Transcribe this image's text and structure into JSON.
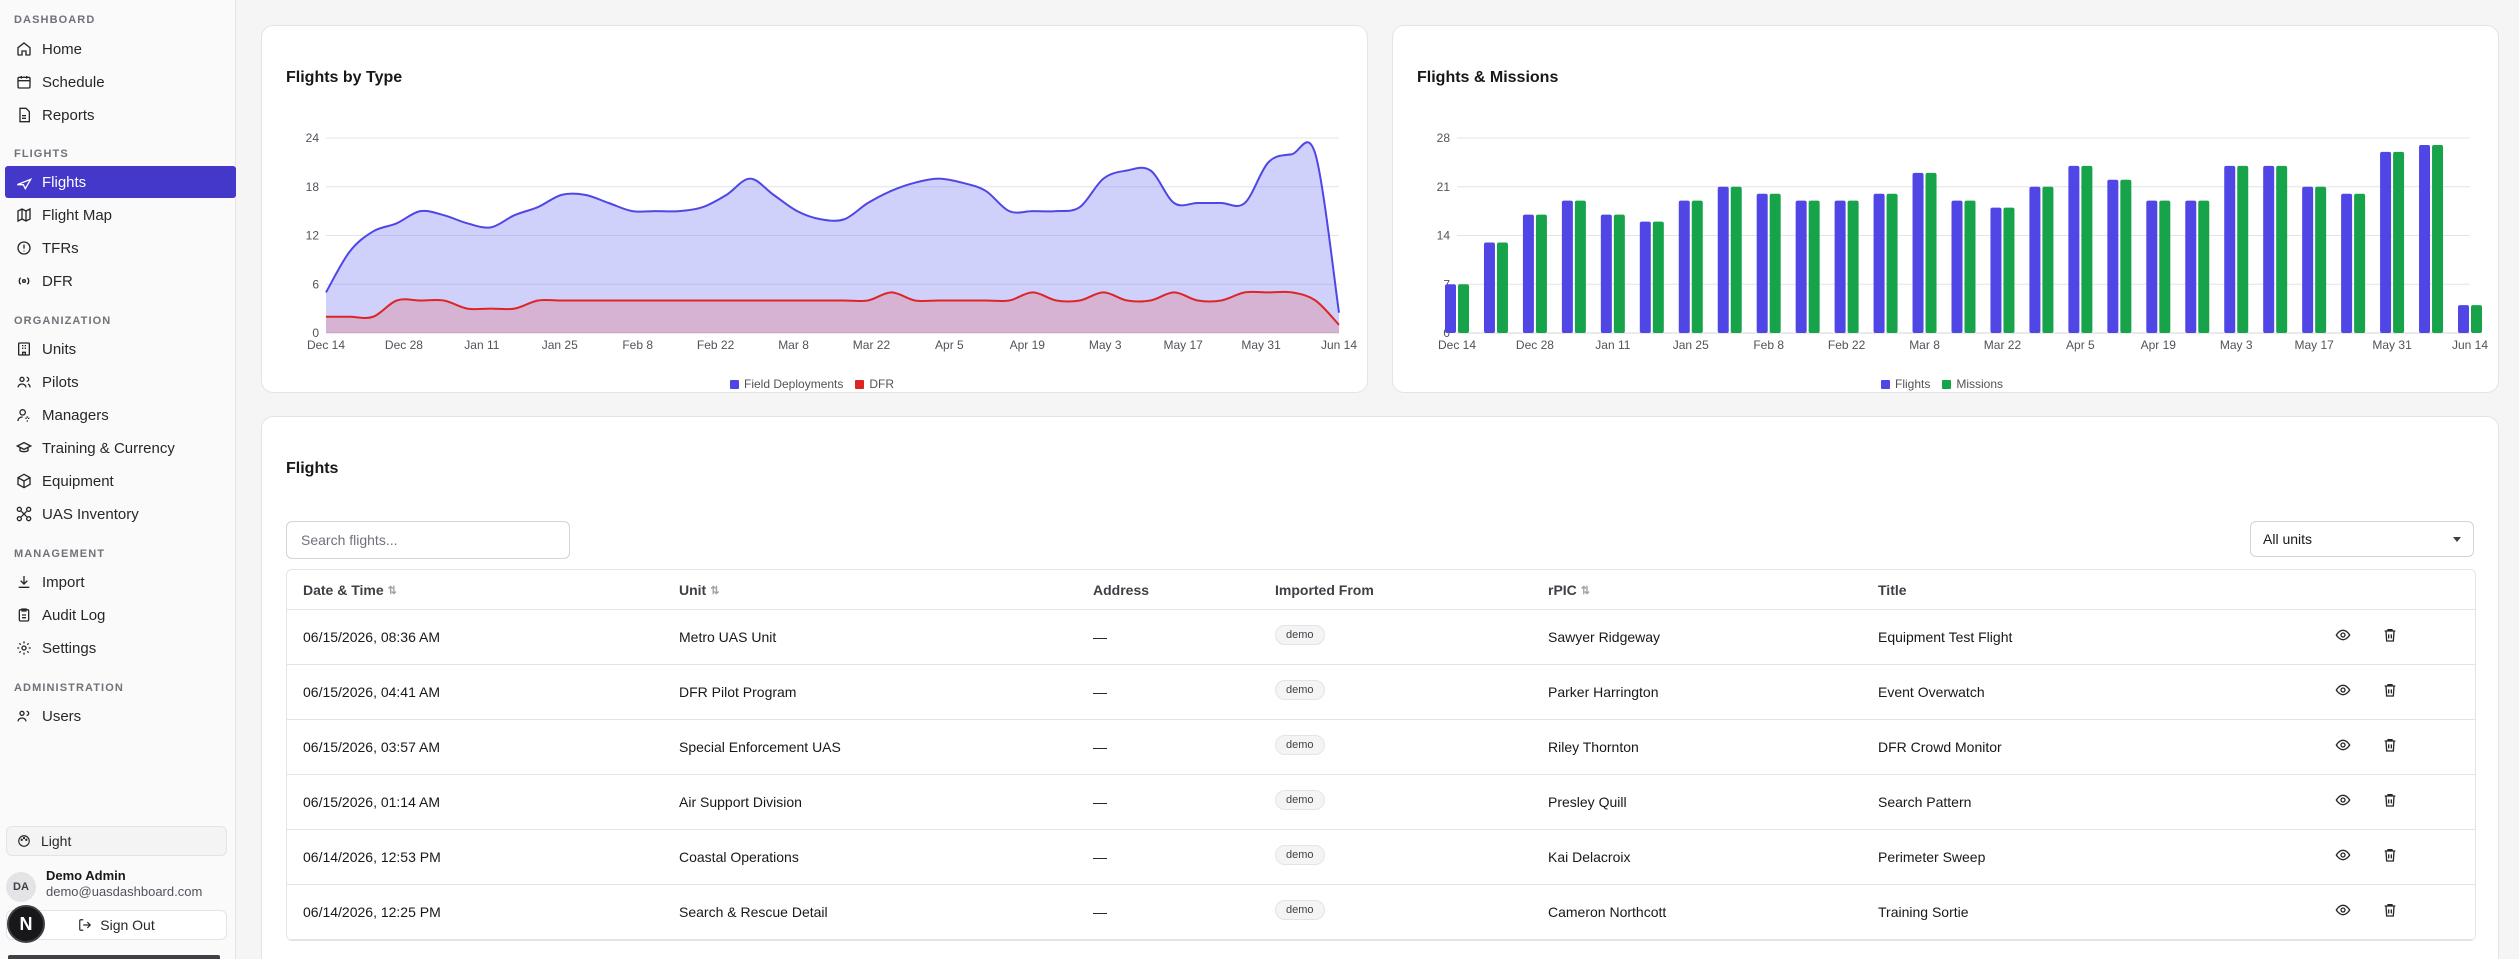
{
  "sidebar": {
    "sections": [
      {
        "label": "DASHBOARD",
        "items": [
          "Home",
          "Schedule",
          "Reports"
        ]
      },
      {
        "label": "FLIGHTS",
        "items": [
          "Flights",
          "Flight Map",
          "TFRs",
          "DFR"
        ]
      },
      {
        "label": "ORGANIZATION",
        "items": [
          "Units",
          "Pilots",
          "Managers",
          "Training & Currency",
          "Equipment",
          "UAS Inventory"
        ]
      },
      {
        "label": "MANAGEMENT",
        "items": [
          "Import",
          "Audit Log",
          "Settings"
        ]
      },
      {
        "label": "ADMINISTRATION",
        "items": [
          "Users"
        ]
      }
    ],
    "active_item": "Flights",
    "theme_label": "Light",
    "user": {
      "initials": "DA",
      "name": "Demo Admin",
      "email": "demo@uasdashboard.com"
    },
    "sign_out_label": "Sign Out",
    "next_badge": "N"
  },
  "flights_by_type": {
    "title": "Flights by Type",
    "chart_data": {
      "type": "area",
      "title": "Flights by Type",
      "x_tick_labels": [
        "Dec 14",
        "Dec 28",
        "Jan 11",
        "Jan 25",
        "Feb 8",
        "Feb 22",
        "Mar 8",
        "Mar 22",
        "Apr 5",
        "Apr 19",
        "May 3",
        "May 17",
        "May 31",
        "Jun 14"
      ],
      "y_ticks": [
        0,
        6,
        12,
        18,
        24
      ],
      "ylim": [
        0,
        24
      ],
      "series": [
        {
          "name": "Field Deployments",
          "color": "#4f46e5",
          "values": [
            5,
            10,
            12.5,
            13.5,
            15,
            14.5,
            13.5,
            13,
            14.5,
            15.5,
            17,
            17,
            16,
            15,
            15,
            15,
            15.5,
            17,
            19,
            17,
            15,
            14,
            14,
            16,
            17.5,
            18.5,
            19,
            18.5,
            17.5,
            15,
            15,
            15,
            15.5,
            19,
            20,
            20,
            16,
            16,
            16,
            16,
            21,
            22,
            22,
            2.5
          ]
        },
        {
          "name": "DFR",
          "color": "#dc2626",
          "values": [
            2,
            2,
            2,
            4,
            4,
            4,
            3,
            3,
            3,
            4,
            4,
            4,
            4,
            4,
            4,
            4,
            4,
            4,
            4,
            4,
            4,
            4,
            4,
            4,
            5,
            4,
            4,
            4,
            4,
            4,
            5,
            4,
            4,
            5,
            4,
            4,
            5,
            4,
            4,
            5,
            5,
            5,
            4,
            1
          ]
        }
      ],
      "legend": "bottom-center",
      "grid": true
    }
  },
  "flights_missions": {
    "title": "Flights & Missions",
    "chart_data": {
      "type": "bar",
      "title": "Flights & Missions",
      "x_tick_labels": [
        "Dec 14",
        "Dec 28",
        "Jan 11",
        "Jan 25",
        "Feb 8",
        "Feb 22",
        "Mar 8",
        "Mar 22",
        "Apr 5",
        "Apr 19",
        "May 3",
        "May 17",
        "May 31",
        "Jun 14"
      ],
      "y_ticks": [
        0,
        7,
        14,
        21,
        28
      ],
      "ylim": [
        0,
        28
      ],
      "series": [
        {
          "name": "Flights",
          "color": "#4f46e5",
          "values": [
            7,
            13,
            17,
            19,
            17,
            16,
            19,
            21,
            20,
            19,
            19,
            20,
            23,
            19,
            18,
            21,
            24,
            22,
            19,
            19,
            24,
            24,
            21,
            20,
            26,
            27,
            4
          ]
        },
        {
          "name": "Missions",
          "color": "#16a34a",
          "values": [
            7,
            13,
            17,
            19,
            17,
            16,
            19,
            21,
            20,
            19,
            19,
            20,
            23,
            19,
            18,
            21,
            24,
            22,
            19,
            19,
            24,
            24,
            21,
            20,
            26,
            27,
            4
          ]
        }
      ],
      "legend": "bottom-center",
      "grid": true
    }
  },
  "flights_table": {
    "title": "Flights",
    "search_placeholder": "Search flights...",
    "unit_filter": "All units",
    "columns": [
      "Date & Time",
      "Unit",
      "Address",
      "Imported From",
      "rPIC",
      "Title"
    ],
    "rows": [
      {
        "date": "06/15/2026, 08:36 AM",
        "unit": "Metro UAS Unit",
        "address": "—",
        "imported": "demo",
        "rpic": "Sawyer Ridgeway",
        "title": "Equipment Test Flight"
      },
      {
        "date": "06/15/2026, 04:41 AM",
        "unit": "DFR Pilot Program",
        "address": "—",
        "imported": "demo",
        "rpic": "Parker Harrington",
        "title": "Event Overwatch"
      },
      {
        "date": "06/15/2026, 03:57 AM",
        "unit": "Special Enforcement UAS",
        "address": "—",
        "imported": "demo",
        "rpic": "Riley Thornton",
        "title": "DFR Crowd Monitor"
      },
      {
        "date": "06/15/2026, 01:14 AM",
        "unit": "Air Support Division",
        "address": "—",
        "imported": "demo",
        "rpic": "Presley Quill",
        "title": "Search Pattern"
      },
      {
        "date": "06/14/2026, 12:53 PM",
        "unit": "Coastal Operations",
        "address": "—",
        "imported": "demo",
        "rpic": "Kai Delacroix",
        "title": "Perimeter Sweep"
      },
      {
        "date": "06/14/2026, 12:25 PM",
        "unit": "Search & Rescue Detail",
        "address": "—",
        "imported": "demo",
        "rpic": "Cameron Northcott",
        "title": "Training Sortie"
      }
    ]
  },
  "colors": {
    "accent": "#4338ca",
    "field": "#4f46e5",
    "dfr": "#dc2626",
    "missions": "#16a34a"
  }
}
